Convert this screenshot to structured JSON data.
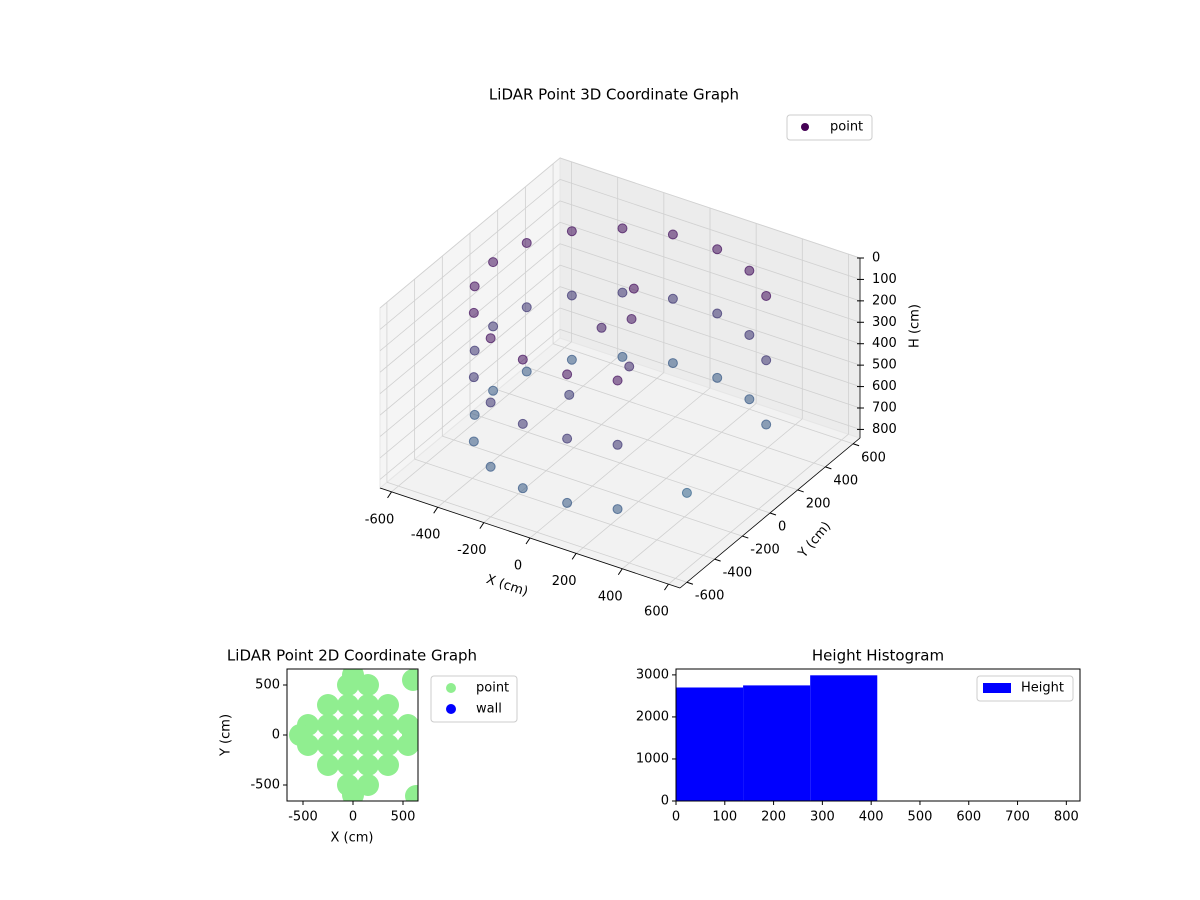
{
  "chart_data": [
    {
      "type": "scatter3d",
      "title": "LiDAR Point 3D Coordinate Graph",
      "xlabel": "X (cm)",
      "ylabel": "Y (cm)",
      "zlabel": "H (cm)",
      "xlim": [
        -650,
        650
      ],
      "ylim": [
        -650,
        650
      ],
      "zlim": [
        840,
        0
      ],
      "xticks": [
        -600,
        -400,
        -200,
        0,
        200,
        400,
        600
      ],
      "yticks": [
        -600,
        -400,
        -200,
        0,
        200,
        400,
        600
      ],
      "zticks": [
        0,
        100,
        200,
        300,
        400,
        500,
        600,
        700,
        800
      ],
      "legend": "upper right",
      "series": [
        {
          "name": "point",
          "color": "#440154",
          "x": [
            421,
            421,
            421,
            275,
            275,
            275,
            96,
            96,
            96,
            -96,
            -96,
            -96,
            -275,
            -275,
            -275,
            -421,
            -421,
            -421,
            -517,
            -517,
            -517,
            -550,
            -550,
            -550,
            -517,
            -517,
            -517,
            -421,
            -421,
            -421,
            -275,
            -275,
            -275,
            -96,
            -96,
            -96,
            96,
            96,
            96,
            275,
            275,
            275,
            0,
            50,
            -50,
            100,
            -100,
            350
          ],
          "y": [
            354,
            354,
            354,
            476,
            476,
            476,
            542,
            542,
            542,
            542,
            542,
            542,
            476,
            476,
            476,
            354,
            354,
            354,
            188,
            188,
            188,
            0,
            0,
            0,
            -188,
            -188,
            -188,
            -354,
            -354,
            -354,
            -476,
            -476,
            -476,
            -542,
            -542,
            -542,
            -542,
            -542,
            -542,
            -476,
            -476,
            -476,
            100,
            0,
            -50,
            -100,
            -200,
            -100
          ],
          "z": [
            100,
            400,
            700,
            100,
            400,
            700,
            100,
            400,
            700,
            100,
            400,
            700,
            100,
            400,
            700,
            100,
            400,
            700,
            100,
            400,
            700,
            100,
            400,
            700,
            100,
            400,
            700,
            100,
            400,
            700,
            100,
            400,
            700,
            100,
            400,
            700,
            100,
            400,
            700,
            100,
            400,
            700,
            80,
            150,
            200,
            300,
            450,
            800
          ]
        }
      ]
    },
    {
      "type": "scatter",
      "title": "LiDAR Point 2D Coordinate Graph",
      "xlabel": "X (cm)",
      "ylabel": "Y (cm)",
      "xlim": [
        -660,
        650
      ],
      "ylim": [
        -660,
        660
      ],
      "xticks": [
        -500,
        0,
        500
      ],
      "yticks": [
        -500,
        0,
        500
      ],
      "legend": "outside right",
      "series": [
        {
          "name": "point",
          "color": "#90ee90",
          "x": [
            -450,
            -450,
            -250,
            -250,
            -250,
            -250,
            -50,
            -50,
            -50,
            -50,
            -50,
            -50,
            150,
            150,
            150,
            150,
            150,
            150,
            350,
            350,
            350,
            350,
            550,
            550,
            0,
            0,
            -530,
            600,
            630,
            600
          ],
          "y": [
            -100,
            100,
            -300,
            -100,
            100,
            300,
            -500,
            -300,
            -100,
            100,
            300,
            500,
            -500,
            -300,
            -100,
            100,
            300,
            500,
            -300,
            -100,
            100,
            300,
            -100,
            100,
            600,
            -600,
            0,
            0,
            -610,
            550
          ]
        },
        {
          "name": "wall",
          "color": "#0000ff",
          "x": [],
          "y": []
        }
      ]
    },
    {
      "type": "histogram",
      "title": "Height Histogram",
      "name": "Height",
      "color": "#0000ff",
      "bins": [
        0,
        137.5,
        275,
        412.5,
        550,
        687.5,
        825
      ],
      "counts": [
        2700,
        2750,
        2990,
        0,
        0,
        0
      ],
      "xlim": [
        0,
        828
      ],
      "ylim": [
        0,
        3140
      ],
      "xticks": [
        0,
        100,
        200,
        300,
        400,
        500,
        600,
        700,
        800
      ],
      "yticks": [
        0,
        1000,
        2000,
        3000
      ],
      "legend": "upper right"
    }
  ]
}
